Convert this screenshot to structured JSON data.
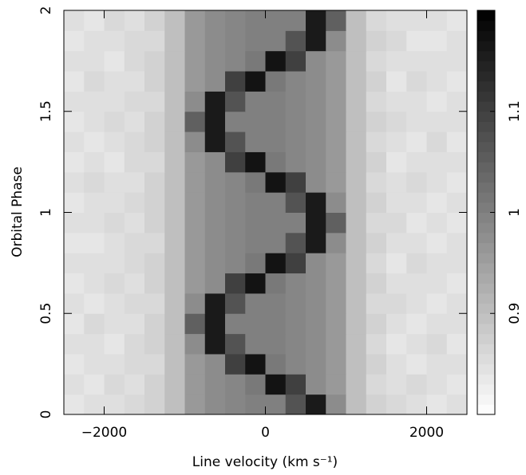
{
  "chart_data": {
    "type": "heatmap",
    "xlabel": "Line velocity (km s⁻¹)",
    "ylabel": "Orbital Phase",
    "xlim": [
      -2500,
      2500
    ],
    "ylim": [
      0,
      2
    ],
    "xticks": [
      {
        "value": -2000,
        "label": "−2000"
      },
      0,
      2000
    ],
    "yticks": [
      0,
      0.5,
      1,
      1.5,
      2
    ],
    "zlim": [
      0.8,
      1.2
    ],
    "zticks": [
      0.9,
      1,
      1.1
    ],
    "colors": [
      "#ffffff",
      "#000000"
    ],
    "xbins": [
      -2500,
      -2250,
      -2000,
      -1750,
      -1500,
      -1250,
      -1000,
      -750,
      -500,
      -250,
      0,
      250,
      500,
      750,
      1000,
      1250,
      1500,
      1750,
      2000,
      2250,
      2500
    ],
    "ybins": [
      0,
      0.1,
      0.2,
      0.3,
      0.4,
      0.5,
      0.6,
      0.7,
      0.8,
      0.9,
      1,
      1.1,
      1.2,
      1.3,
      1.4,
      1.5,
      1.6,
      1.7,
      1.8,
      1.9,
      2
    ],
    "z": [
      [
        0.84,
        0.85,
        0.85,
        0.86,
        0.87,
        0.9,
        0.96,
        0.98,
        0.99,
        1.0,
        1.0,
        1.07,
        1.16,
        0.98,
        0.9,
        0.87,
        0.86,
        0.85,
        0.84,
        0.85
      ],
      [
        0.85,
        0.84,
        0.86,
        0.85,
        0.87,
        0.9,
        0.96,
        0.98,
        0.99,
        1.01,
        1.17,
        1.1,
        0.98,
        0.96,
        0.9,
        0.86,
        0.85,
        0.86,
        0.85,
        0.84
      ],
      [
        0.84,
        0.85,
        0.85,
        0.86,
        0.86,
        0.9,
        0.96,
        0.98,
        1.1,
        1.17,
        1.01,
        0.99,
        0.98,
        0.96,
        0.9,
        0.87,
        0.85,
        0.84,
        0.85,
        0.85
      ],
      [
        0.85,
        0.85,
        0.84,
        0.86,
        0.87,
        0.9,
        0.98,
        1.16,
        1.07,
        1.0,
        1.0,
        0.99,
        0.98,
        0.96,
        0.9,
        0.86,
        0.84,
        0.85,
        0.86,
        0.84
      ],
      [
        0.84,
        0.86,
        0.85,
        0.85,
        0.87,
        0.9,
        1.05,
        1.16,
        1.0,
        1.0,
        1.0,
        0.99,
        0.98,
        0.96,
        0.9,
        0.87,
        0.85,
        0.84,
        0.85,
        0.85
      ],
      [
        0.85,
        0.84,
        0.85,
        0.86,
        0.86,
        0.9,
        0.98,
        1.16,
        1.07,
        1.0,
        1.0,
        0.99,
        0.98,
        0.96,
        0.9,
        0.86,
        0.86,
        0.85,
        0.84,
        0.85
      ],
      [
        0.84,
        0.85,
        0.86,
        0.85,
        0.87,
        0.9,
        0.96,
        0.98,
        1.1,
        1.17,
        1.01,
        0.99,
        0.98,
        0.96,
        0.9,
        0.87,
        0.85,
        0.85,
        0.85,
        0.84
      ],
      [
        0.85,
        0.85,
        0.85,
        0.86,
        0.87,
        0.9,
        0.96,
        0.98,
        0.99,
        1.01,
        1.17,
        1.1,
        0.98,
        0.96,
        0.9,
        0.86,
        0.84,
        0.86,
        0.85,
        0.85
      ],
      [
        0.84,
        0.84,
        0.85,
        0.86,
        0.86,
        0.9,
        0.96,
        0.98,
        0.99,
        1.0,
        1.0,
        1.07,
        1.16,
        0.98,
        0.9,
        0.87,
        0.85,
        0.85,
        0.84,
        0.85
      ],
      [
        0.85,
        0.85,
        0.86,
        0.85,
        0.87,
        0.9,
        0.96,
        0.98,
        0.99,
        1.0,
        1.0,
        1.0,
        1.16,
        1.05,
        0.9,
        0.86,
        0.86,
        0.84,
        0.85,
        0.84
      ],
      [
        0.84,
        0.85,
        0.85,
        0.86,
        0.87,
        0.9,
        0.96,
        0.98,
        0.99,
        1.0,
        1.0,
        1.07,
        1.16,
        0.98,
        0.9,
        0.87,
        0.85,
        0.85,
        0.84,
        0.85
      ],
      [
        0.85,
        0.86,
        0.85,
        0.85,
        0.87,
        0.9,
        0.96,
        0.98,
        0.99,
        1.01,
        1.17,
        1.1,
        0.98,
        0.96,
        0.9,
        0.86,
        0.85,
        0.86,
        0.85,
        0.84
      ],
      [
        0.84,
        0.85,
        0.84,
        0.86,
        0.86,
        0.9,
        0.96,
        0.98,
        1.1,
        1.17,
        1.01,
        0.99,
        0.98,
        0.96,
        0.9,
        0.87,
        0.84,
        0.85,
        0.85,
        0.85
      ],
      [
        0.85,
        0.84,
        0.85,
        0.86,
        0.87,
        0.9,
        0.98,
        1.16,
        1.07,
        1.0,
        1.0,
        0.99,
        0.98,
        0.96,
        0.9,
        0.86,
        0.85,
        0.84,
        0.86,
        0.84
      ],
      [
        0.84,
        0.85,
        0.86,
        0.85,
        0.87,
        0.9,
        1.05,
        1.16,
        1.0,
        1.0,
        1.0,
        0.99,
        0.98,
        0.96,
        0.9,
        0.87,
        0.86,
        0.85,
        0.85,
        0.85
      ],
      [
        0.85,
        0.85,
        0.85,
        0.86,
        0.86,
        0.9,
        0.98,
        1.16,
        1.07,
        1.0,
        1.0,
        0.99,
        0.98,
        0.96,
        0.9,
        0.86,
        0.85,
        0.85,
        0.84,
        0.85
      ],
      [
        0.84,
        0.86,
        0.85,
        0.85,
        0.87,
        0.9,
        0.96,
        0.98,
        1.1,
        1.17,
        1.01,
        0.99,
        0.98,
        0.96,
        0.9,
        0.87,
        0.84,
        0.86,
        0.85,
        0.84
      ],
      [
        0.85,
        0.85,
        0.84,
        0.86,
        0.87,
        0.9,
        0.96,
        0.98,
        0.99,
        1.01,
        1.17,
        1.1,
        0.98,
        0.96,
        0.9,
        0.86,
        0.85,
        0.85,
        0.85,
        0.85
      ],
      [
        0.84,
        0.85,
        0.85,
        0.86,
        0.86,
        0.9,
        0.96,
        0.98,
        0.99,
        1.0,
        1.0,
        1.07,
        1.16,
        0.98,
        0.9,
        0.87,
        0.86,
        0.84,
        0.84,
        0.85
      ],
      [
        0.85,
        0.84,
        0.86,
        0.85,
        0.87,
        0.9,
        0.96,
        0.98,
        0.99,
        1.0,
        1.0,
        1.0,
        1.16,
        1.05,
        0.9,
        0.86,
        0.85,
        0.85,
        0.85,
        0.84
      ]
    ]
  }
}
